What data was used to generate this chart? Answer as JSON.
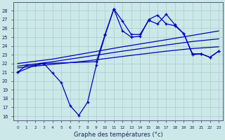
{
  "xlabel": "Graphe des températures (°c)",
  "background_color": "#cce8e8",
  "grid_color": "#aacccc",
  "line_color": "#0000bb",
  "x_ticks": [
    0,
    1,
    2,
    3,
    4,
    5,
    6,
    7,
    8,
    9,
    10,
    11,
    12,
    13,
    14,
    15,
    16,
    17,
    18,
    19,
    20,
    21,
    22,
    23
  ],
  "ylim": [
    15.5,
    29.0
  ],
  "yticks": [
    16,
    17,
    18,
    19,
    20,
    21,
    22,
    23,
    24,
    25,
    26,
    27,
    28
  ],
  "line_min": {
    "x": [
      0,
      1,
      2,
      3,
      4,
      5,
      6,
      7,
      8,
      9,
      10,
      11,
      12,
      13,
      14,
      15,
      16,
      17,
      18,
      19,
      20,
      21,
      22,
      23
    ],
    "y": [
      21.0,
      21.8,
      21.8,
      22.0,
      20.9,
      19.8,
      17.2,
      16.1,
      17.6,
      21.8,
      25.2,
      28.2,
      25.7,
      25.0,
      25.1,
      27.0,
      27.5,
      26.5,
      26.3,
      25.4,
      23.0,
      23.1,
      22.7,
      23.4
    ]
  },
  "line_max": {
    "x": [
      0,
      2,
      3,
      9,
      10,
      11,
      12,
      13,
      14,
      15,
      16,
      17,
      18,
      19,
      20,
      21,
      22,
      23
    ],
    "y": [
      21.0,
      21.8,
      22.0,
      22.2,
      25.3,
      28.2,
      26.8,
      25.3,
      25.3,
      26.9,
      26.5,
      27.6,
      26.4,
      25.4,
      23.1,
      23.1,
      22.7,
      23.4
    ]
  },
  "smooth1": {
    "x": [
      0,
      4,
      8,
      12,
      17,
      20,
      23
    ],
    "y": [
      21.5,
      21.9,
      22.3,
      22.8,
      23.4,
      23.7,
      23.9
    ]
  },
  "smooth2": {
    "x": [
      0,
      4,
      8,
      12,
      17,
      20,
      23
    ],
    "y": [
      21.7,
      22.2,
      22.8,
      23.4,
      24.1,
      24.5,
      24.8
    ]
  },
  "smooth3": {
    "x": [
      0,
      4,
      8,
      12,
      17,
      20,
      23
    ],
    "y": [
      22.0,
      22.5,
      23.2,
      23.9,
      24.7,
      25.2,
      25.7
    ]
  }
}
